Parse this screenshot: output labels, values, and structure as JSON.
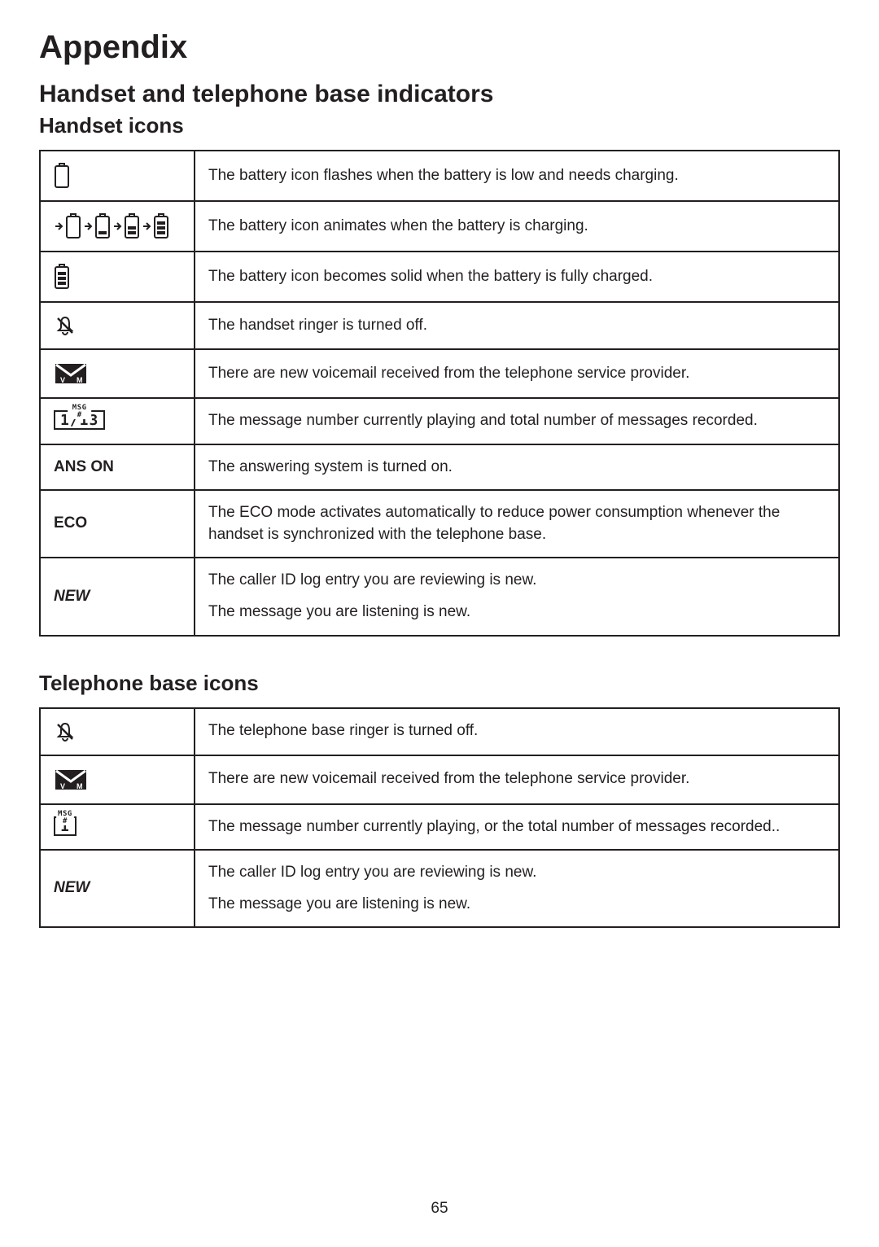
{
  "page_title": "Appendix",
  "section_title": "Handset and telephone base indicators",
  "handset_heading": "Handset icons",
  "base_heading": "Telephone base icons",
  "page_number": "65",
  "colors": {
    "text": "#231f20",
    "bg": "#ffffff",
    "border": "#231f20"
  },
  "handset_rows": [
    {
      "icon": "battery-empty",
      "desc": "The battery icon flashes when the battery is low and needs charging."
    },
    {
      "icon": "battery-animating",
      "desc": "The battery icon animates when the battery is charging."
    },
    {
      "icon": "battery-full",
      "desc": "The battery icon becomes solid when the battery is fully charged."
    },
    {
      "icon": "ringer-off",
      "desc": "The handset ringer is turned off."
    },
    {
      "icon": "voicemail",
      "desc": "There are new voicemail received from the telephone service provider."
    },
    {
      "icon": "msg-count",
      "msg_label": "MSG #",
      "msg_value": "1/13",
      "desc": "The message number currently playing and total number of messages recorded."
    },
    {
      "label": "ANS ON",
      "desc": "The answering system is turned on."
    },
    {
      "label": "ECO",
      "desc": "The ECO mode activates automatically to reduce power consumption whenever the handset is synchronized with the telephone base."
    },
    {
      "label": "NEW",
      "italic": true,
      "desc_lines": [
        "The caller ID log entry you are reviewing is new.",
        "The message you are listening is new."
      ]
    }
  ],
  "base_rows": [
    {
      "icon": "ringer-off",
      "desc": "The telephone base ringer is turned off."
    },
    {
      "icon": "voicemail",
      "desc": "There are new voicemail received from the telephone service provider."
    },
    {
      "icon": "msg-count",
      "msg_label": "MSG #",
      "msg_value": "1",
      "desc": "The message number currently playing, or the total number of  messages recorded.."
    },
    {
      "label": "NEW",
      "italic": true,
      "desc_lines": [
        "The caller ID log entry you are reviewing is new.",
        "The message you are listening is new."
      ]
    }
  ]
}
